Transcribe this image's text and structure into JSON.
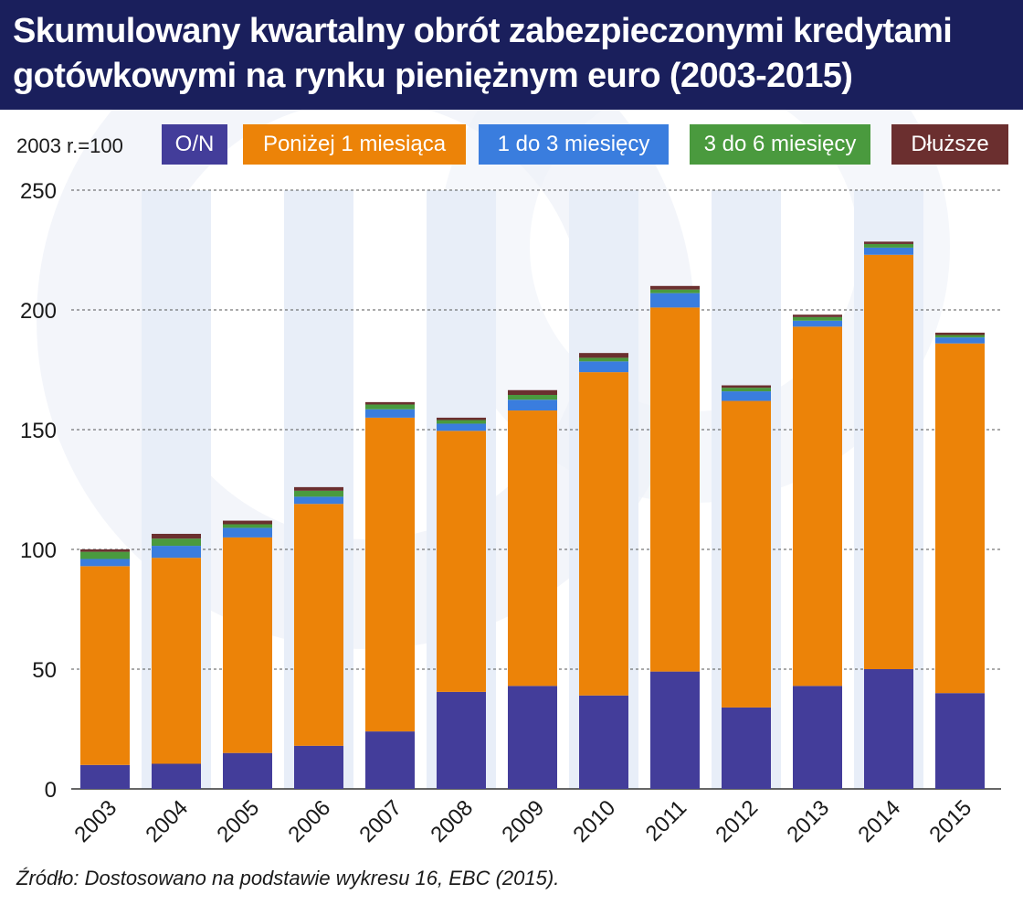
{
  "title": "Skumulowany kwartalny obrót zabezpieczonymi kredytami gotówkowymi na rynku pieniężnym euro (2003-2015)",
  "unit_label": "2003 r.=100",
  "source": "Źródło: Dostosowano na podstawie wykresu 16, EBC (2015).",
  "colors": {
    "header": "#1a1f5c",
    "band": "#e8eef8",
    "grid": "#555555"
  },
  "chart_data": {
    "type": "bar",
    "stacked": true,
    "categories": [
      "2003",
      "2004",
      "2005",
      "2006",
      "2007",
      "2008",
      "2009",
      "2010",
      "2011",
      "2012",
      "2013",
      "2014",
      "2015"
    ],
    "ylim": [
      0,
      250
    ],
    "yticks": [
      0,
      50,
      100,
      150,
      200,
      250
    ],
    "ylabel": "2003 r.=100",
    "grid": true,
    "legend_position": "top",
    "series": [
      {
        "name": "O/N",
        "color": "#433d9a",
        "values": [
          10,
          10.5,
          15,
          18,
          24,
          40.5,
          43,
          39,
          49,
          34,
          43,
          50,
          40
        ]
      },
      {
        "name": "Poniżej 1 miesiąca",
        "color": "#ec8308",
        "values": [
          83,
          86,
          90,
          101,
          131,
          109,
          115,
          135,
          152,
          128,
          150,
          173,
          146
        ]
      },
      {
        "name": "1 do 3 miesięcy",
        "color": "#3a7dde",
        "values": [
          3,
          5,
          4,
          3,
          3.5,
          3,
          4.5,
          4.5,
          6,
          4,
          2.5,
          3,
          2.5
        ]
      },
      {
        "name": "3 do 6 miesięcy",
        "color": "#4a9a3e",
        "values": [
          3,
          3,
          1.5,
          2.5,
          2,
          1.5,
          2,
          1.5,
          1.5,
          1.5,
          1.5,
          1.5,
          1
        ]
      },
      {
        "name": "Dłuższe",
        "color": "#6b2f2f",
        "values": [
          1,
          2,
          1.5,
          1.5,
          1,
          1,
          2,
          2,
          1.5,
          1,
          1,
          1,
          1
        ]
      }
    ]
  }
}
